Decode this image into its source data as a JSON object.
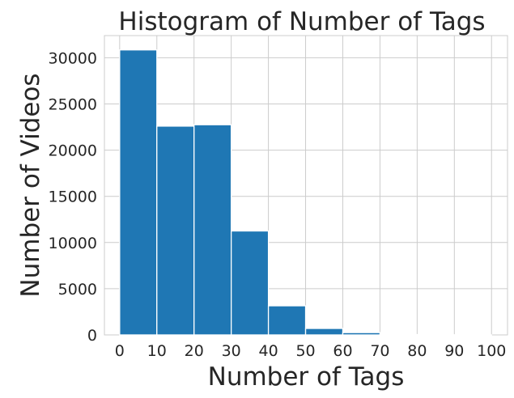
{
  "chart_data": {
    "type": "bar",
    "title": "Histogram of Number of Tags",
    "xlabel": "Number of Tags",
    "ylabel": "Number of Videos",
    "bin_edges": [
      0,
      10,
      20,
      30,
      40,
      50,
      60,
      70,
      80,
      90,
      100
    ],
    "values": [
      30850,
      22600,
      22750,
      11250,
      3150,
      700,
      250,
      40,
      15,
      5
    ],
    "xlim": [
      -4.1,
      104.3
    ],
    "ylim": [
      0,
      32400
    ],
    "x_ticks": [
      "0",
      "10",
      "20",
      "30",
      "40",
      "50",
      "60",
      "70",
      "80",
      "90",
      "100"
    ],
    "y_ticks": [
      "0",
      "5000",
      "10000",
      "15000",
      "20000",
      "25000",
      "30000"
    ],
    "grid": true,
    "colors": {
      "bar": "#1f77b4",
      "grid": "#cccccc",
      "text": "#262626",
      "background": "#ffffff"
    }
  }
}
